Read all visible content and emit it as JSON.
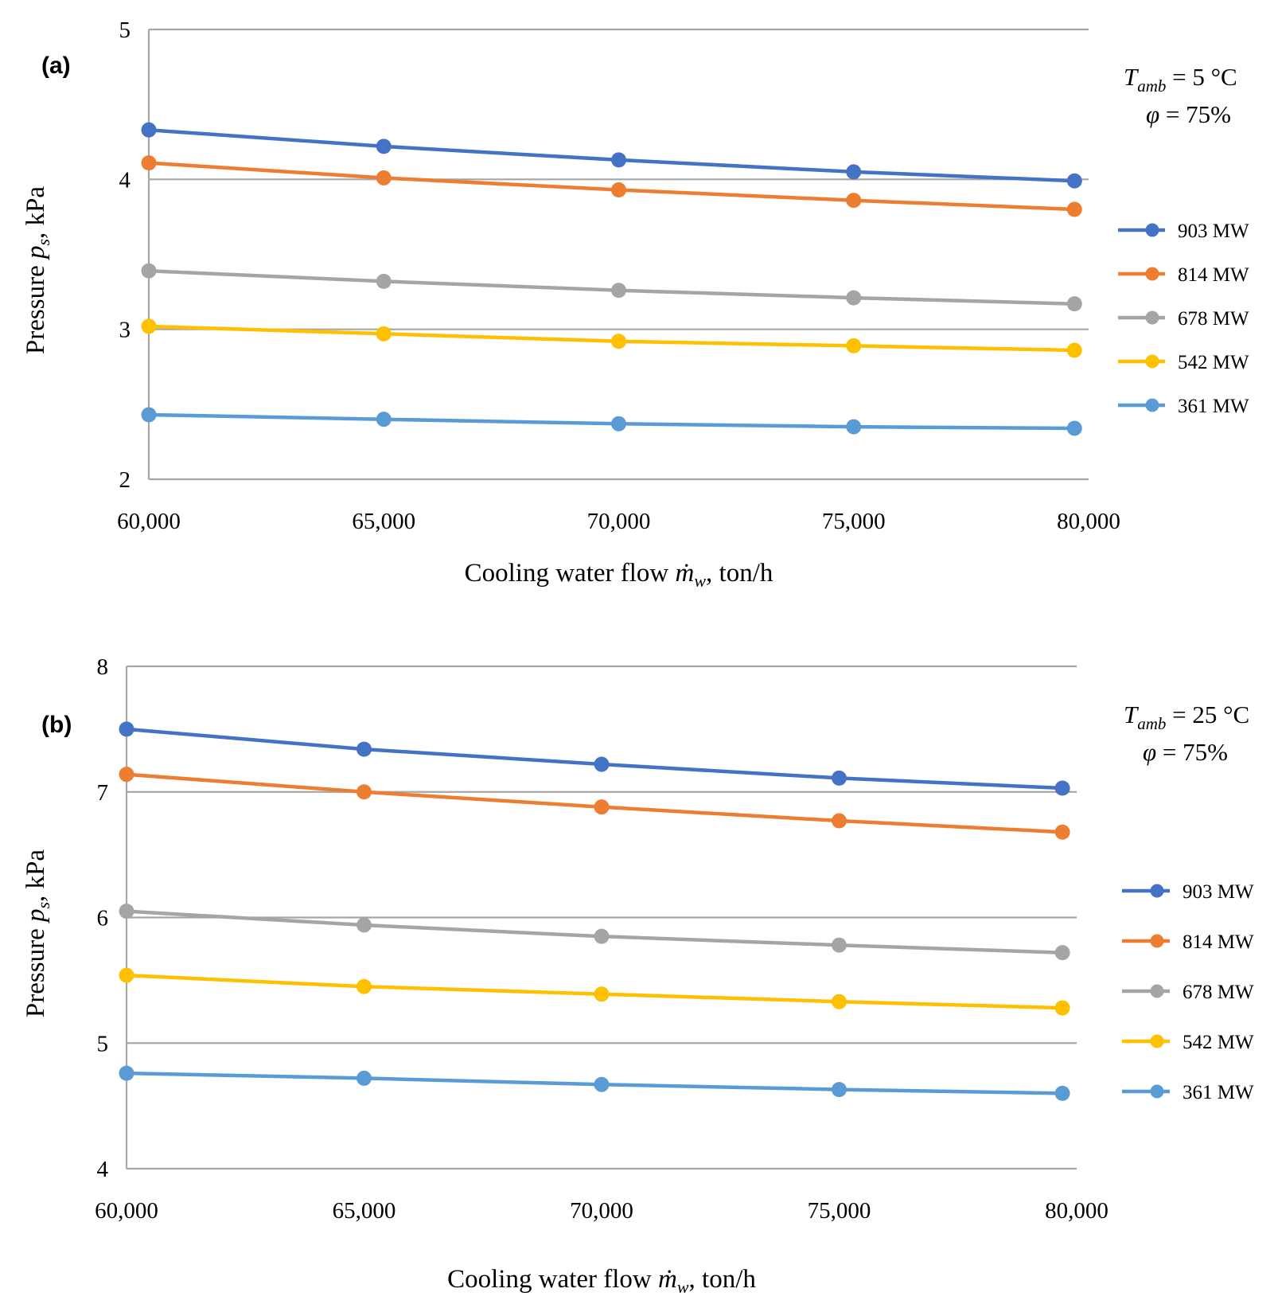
{
  "chart_data": [
    {
      "type": "line",
      "panel_label": "(a)",
      "condition": {
        "t_symbol": "T",
        "t_sub": "amb",
        "t_value": "= 5 °C",
        "phi_symbol": "φ",
        "phi_value": "= 75%"
      },
      "ylabel": {
        "prefix": "Pressure ",
        "symbol": "p",
        "sub": "s",
        "suffix": ", kPa"
      },
      "xlabel": {
        "prefix": "Cooling water flow ",
        "symbol": "ṁ",
        "sub": "w",
        "suffix": ", ton/h"
      },
      "x": [
        60000,
        65000,
        70000,
        75000,
        79700
      ],
      "xlim": [
        60000,
        80000
      ],
      "xticks": [
        60000,
        65000,
        70000,
        75000,
        80000
      ],
      "xtick_labels": [
        "60,000",
        "65,000",
        "70,000",
        "75,000",
        "80,000"
      ],
      "ylim": [
        2,
        5
      ],
      "yticks": [
        2,
        3,
        4,
        5
      ],
      "ytick_labels": [
        "2",
        "3",
        "4",
        "5"
      ],
      "grid": true,
      "legend": "right",
      "series": [
        {
          "name": "903 MW",
          "color": "#4472c4",
          "values": [
            4.33,
            4.22,
            4.13,
            4.05,
            3.99
          ]
        },
        {
          "name": "814 MW",
          "color": "#ed7d31",
          "values": [
            4.11,
            4.01,
            3.93,
            3.86,
            3.8
          ]
        },
        {
          "name": "678 MW",
          "color": "#a5a5a5",
          "values": [
            3.39,
            3.32,
            3.26,
            3.21,
            3.17
          ]
        },
        {
          "name": "542 MW",
          "color": "#ffc000",
          "values": [
            3.02,
            2.97,
            2.92,
            2.89,
            2.86
          ]
        },
        {
          "name": "361 MW",
          "color": "#5b9bd5",
          "values": [
            2.43,
            2.4,
            2.37,
            2.35,
            2.34
          ]
        }
      ]
    },
    {
      "type": "line",
      "panel_label": "(b)",
      "condition": {
        "t_symbol": "T",
        "t_sub": "amb",
        "t_value": "= 25 °C",
        "phi_symbol": "φ",
        "phi_value": "= 75%"
      },
      "ylabel": {
        "prefix": "Pressure ",
        "symbol": "p",
        "sub": "s",
        "suffix": ", kPa"
      },
      "xlabel": {
        "prefix": "Cooling water flow ",
        "symbol": "ṁ",
        "sub": "w",
        "suffix": ", ton/h"
      },
      "x": [
        60000,
        65000,
        70000,
        75000,
        79700
      ],
      "xlim": [
        60000,
        80000
      ],
      "xticks": [
        60000,
        65000,
        70000,
        75000,
        80000
      ],
      "xtick_labels": [
        "60,000",
        "65,000",
        "70,000",
        "75,000",
        "80,000"
      ],
      "ylim": [
        4,
        8
      ],
      "yticks": [
        4,
        5,
        6,
        7,
        8
      ],
      "ytick_labels": [
        "4",
        "5",
        "6",
        "7",
        "8"
      ],
      "grid": true,
      "legend": "right",
      "series": [
        {
          "name": "903 MW",
          "color": "#4472c4",
          "values": [
            7.5,
            7.34,
            7.22,
            7.11,
            7.03
          ]
        },
        {
          "name": "814 MW",
          "color": "#ed7d31",
          "values": [
            7.14,
            7.0,
            6.88,
            6.77,
            6.68
          ]
        },
        {
          "name": "678 MW",
          "color": "#a5a5a5",
          "values": [
            6.05,
            5.94,
            5.85,
            5.78,
            5.72
          ]
        },
        {
          "name": "542 MW",
          "color": "#ffc000",
          "values": [
            5.54,
            5.45,
            5.39,
            5.33,
            5.28
          ]
        },
        {
          "name": "361 MW",
          "color": "#5b9bd5",
          "values": [
            4.76,
            4.72,
            4.67,
            4.63,
            4.6
          ]
        }
      ]
    }
  ]
}
